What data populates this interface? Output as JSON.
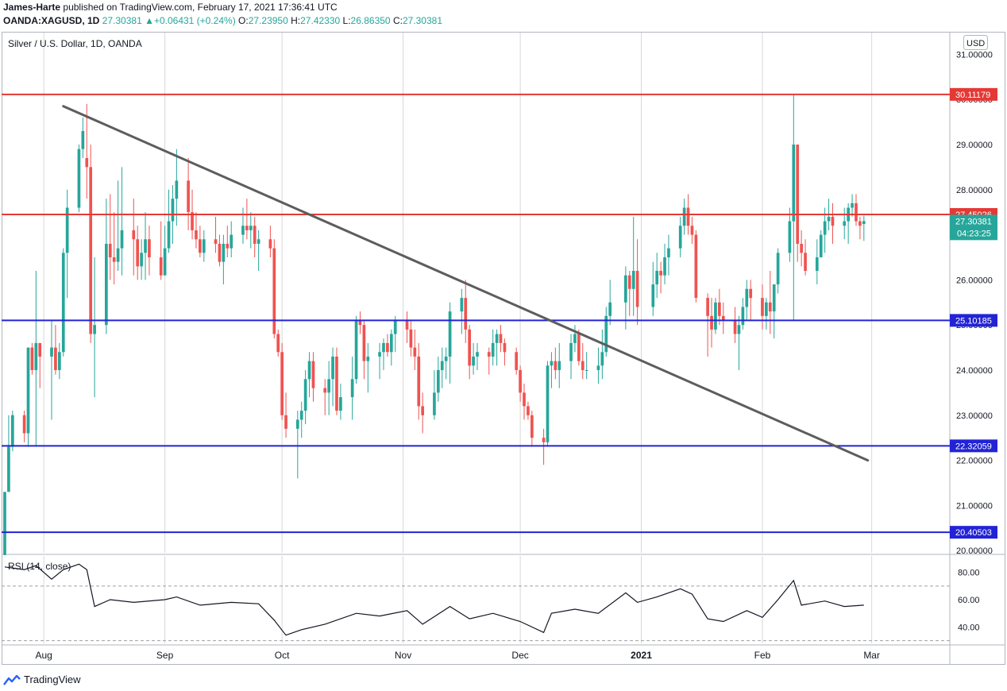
{
  "header": {
    "publisher_name": "James-Harte",
    "published_text": "published on TradingView.com, February 17, 2021 17:36:41 UTC",
    "symbol": "OANDA:XAGUSD, 1D",
    "change": "27.30381 ▲+0.06431 (+0.24%)",
    "o_label": "O:",
    "o_value": "27.23950",
    "h_label": "H:",
    "h_value": "27.42330",
    "l_label": "L:",
    "l_value": "26.86350",
    "c_label": "C:",
    "c_value": "27.30381"
  },
  "footer": {
    "brand": "TradingView",
    "logo_icon": "tradingview-logo-icon"
  },
  "colors": {
    "up": "#26a69a",
    "down": "#ef5350",
    "resistance": "#e53935",
    "support": "#2323d6",
    "trendline": "#5d5d5d",
    "rsi": "#131722"
  },
  "chart_data": {
    "type": "candlestick",
    "title": "Silver / U.S. Dollar, 1D, OANDA",
    "currency": "USD",
    "last_price": "27.30381",
    "countdown": "04:23:25",
    "y_ticks": [
      "31.00000",
      "30.00000",
      "29.00000",
      "28.00000",
      "27.00000",
      "26.00000",
      "25.00000",
      "24.00000",
      "23.00000",
      "22.00000",
      "21.00000",
      "20.00000"
    ],
    "ylim": [
      19.95,
      31.5
    ],
    "x_labels": [
      "Aug",
      "Sep",
      "Oct",
      "Nov",
      "Dec",
      "2021",
      "Feb",
      "Mar"
    ],
    "x_label_dates": [
      "2020-08-01",
      "2020-09-01",
      "2020-10-01",
      "2020-11-01",
      "2020-12-01",
      "2021-01-01",
      "2021-02-01",
      "2021-03-01"
    ],
    "xlim": [
      "2020-07-22",
      "2021-03-21"
    ],
    "hlines": [
      {
        "value": 30.11179,
        "label": "30.11179",
        "kind": "resistance"
      },
      {
        "value": 27.45026,
        "label": "27.45026",
        "kind": "resistance"
      },
      {
        "value": 25.10185,
        "label": "25.10185",
        "kind": "support"
      },
      {
        "value": 22.32059,
        "label": "22.32059",
        "kind": "support"
      },
      {
        "value": 20.40503,
        "label": "20.40503",
        "kind": "support"
      }
    ],
    "trendline": [
      {
        "date": "2020-08-06",
        "price": 29.85
      },
      {
        "date": "2021-02-28",
        "price": 22.0
      }
    ],
    "candles": [
      [
        "2020-07-22",
        19.9,
        21.3,
        19.9,
        21.3
      ],
      [
        "2020-07-23",
        21.3,
        23.0,
        21.3,
        22.3
      ],
      [
        "2020-07-24",
        22.3,
        23.1,
        22.2,
        23.0
      ],
      [
        "2020-07-27",
        23.0,
        23.1,
        22.4,
        22.6
      ],
      [
        "2020-07-28",
        22.6,
        24.5,
        22.3,
        24.5
      ],
      [
        "2020-07-29",
        24.5,
        24.6,
        23.9,
        24.0
      ],
      [
        "2020-07-30",
        24.0,
        26.2,
        22.3,
        24.6
      ],
      [
        "2020-07-31",
        24.6,
        24.6,
        23.6,
        24.3
      ],
      [
        "2020-08-03",
        24.3,
        25.1,
        22.9,
        24.5
      ],
      [
        "2020-08-04",
        24.5,
        25.0,
        23.9,
        24.0
      ],
      [
        "2020-08-05",
        24.0,
        24.6,
        23.8,
        24.4
      ],
      [
        "2020-08-06",
        24.4,
        26.7,
        24.3,
        26.6
      ],
      [
        "2020-08-07",
        26.6,
        28.0,
        25.6,
        27.6
      ],
      [
        "2020-08-10",
        27.6,
        29.0,
        27.5,
        28.9
      ],
      [
        "2020-08-11",
        28.9,
        29.6,
        28.7,
        29.3
      ],
      [
        "2020-08-12",
        28.7,
        29.9,
        27.8,
        28.5
      ],
      [
        "2020-08-13",
        28.5,
        29.0,
        24.6,
        24.8
      ],
      [
        "2020-08-14",
        24.8,
        26.5,
        23.4,
        25.0
      ],
      [
        "2020-08-17",
        25.0,
        27.8,
        24.8,
        26.8
      ],
      [
        "2020-08-18",
        26.8,
        27.9,
        26.0,
        26.5
      ],
      [
        "2020-08-19",
        26.5,
        27.5,
        25.9,
        26.4
      ],
      [
        "2020-08-20",
        26.4,
        28.2,
        26.2,
        26.7
      ],
      [
        "2020-08-21",
        26.7,
        28.5,
        26.1,
        27.1
      ],
      [
        "2020-08-24",
        27.1,
        27.8,
        26.1,
        26.9
      ],
      [
        "2020-08-25",
        26.9,
        27.2,
        26.0,
        26.3
      ],
      [
        "2020-08-26",
        26.3,
        26.9,
        26.0,
        26.6
      ],
      [
        "2020-08-27",
        26.6,
        27.5,
        26.0,
        26.9
      ],
      [
        "2020-08-28",
        26.9,
        27.2,
        26.1,
        26.5
      ],
      [
        "2020-08-31",
        26.5,
        27.3,
        26.0,
        26.1
      ],
      [
        "2020-09-01",
        26.1,
        27.2,
        26.1,
        26.7
      ],
      [
        "2020-09-02",
        26.7,
        28.0,
        26.6,
        27.3
      ],
      [
        "2020-09-03",
        27.3,
        28.1,
        26.8,
        27.8
      ],
      [
        "2020-09-04",
        27.8,
        28.9,
        27.2,
        28.2
      ],
      [
        "2020-09-07",
        28.2,
        28.7,
        27.1,
        27.5
      ],
      [
        "2020-09-08",
        27.5,
        28.0,
        26.9,
        27.1
      ],
      [
        "2020-09-09",
        27.1,
        27.5,
        26.7,
        26.9
      ],
      [
        "2020-09-10",
        26.9,
        27.2,
        26.5,
        26.6
      ],
      [
        "2020-09-11",
        26.6,
        27.1,
        26.4,
        26.9
      ],
      [
        "2020-09-14",
        26.9,
        27.4,
        26.6,
        26.8
      ],
      [
        "2020-09-15",
        26.8,
        27.0,
        26.3,
        26.4
      ],
      [
        "2020-09-16",
        26.4,
        27.0,
        25.9,
        26.8
      ],
      [
        "2020-09-17",
        26.8,
        27.2,
        26.5,
        26.7
      ],
      [
        "2020-09-18",
        26.7,
        27.3,
        26.5,
        27.0
      ],
      [
        "2020-09-21",
        27.0,
        27.6,
        26.8,
        27.2
      ],
      [
        "2020-09-22",
        27.2,
        27.8,
        26.9,
        27.1
      ],
      [
        "2020-09-23",
        27.1,
        27.5,
        26.7,
        27.2
      ],
      [
        "2020-09-24",
        27.2,
        27.4,
        26.5,
        26.8
      ],
      [
        "2020-09-25",
        26.8,
        27.1,
        26.2,
        26.9
      ],
      [
        "2020-09-28",
        26.9,
        27.2,
        26.5,
        26.7
      ],
      [
        "2020-09-29",
        26.7,
        26.9,
        24.7,
        24.8
      ],
      [
        "2020-09-30",
        24.8,
        24.9,
        24.3,
        24.4
      ],
      [
        "2020-10-01",
        24.4,
        24.6,
        22.9,
        23.0
      ],
      [
        "2020-10-02",
        23.0,
        23.5,
        22.5,
        22.7
      ],
      [
        "2020-10-05",
        22.7,
        23.1,
        21.6,
        22.9
      ],
      [
        "2020-10-06",
        22.9,
        23.3,
        22.5,
        23.1
      ],
      [
        "2020-10-07",
        23.1,
        24.0,
        22.8,
        23.8
      ],
      [
        "2020-10-08",
        23.8,
        24.4,
        23.4,
        24.2
      ],
      [
        "2020-10-09",
        24.2,
        24.4,
        23.3,
        23.6
      ],
      [
        "2020-10-12",
        23.6,
        23.8,
        23.0,
        23.5
      ],
      [
        "2020-10-13",
        23.5,
        24.2,
        23.0,
        23.8
      ],
      [
        "2020-10-14",
        23.8,
        24.5,
        23.2,
        24.3
      ],
      [
        "2020-10-15",
        24.3,
        24.5,
        23.0,
        23.1
      ],
      [
        "2020-10-16",
        23.1,
        23.7,
        22.9,
        23.4
      ],
      [
        "2020-10-19",
        23.4,
        24.3,
        22.9,
        23.8
      ],
      [
        "2020-10-20",
        23.8,
        25.2,
        23.7,
        25.1
      ],
      [
        "2020-10-21",
        25.1,
        25.3,
        24.8,
        25.0
      ],
      [
        "2020-10-22",
        25.0,
        25.1,
        23.8,
        24.2
      ],
      [
        "2020-10-23",
        24.2,
        24.6,
        23.5,
        24.3
      ],
      [
        "2020-10-26",
        24.3,
        24.6,
        23.8,
        24.4
      ],
      [
        "2020-10-27",
        24.4,
        24.7,
        24.0,
        24.6
      ],
      [
        "2020-10-28",
        24.6,
        24.8,
        24.3,
        24.4
      ],
      [
        "2020-10-29",
        24.4,
        24.9,
        24.1,
        24.8
      ],
      [
        "2020-10-30",
        24.8,
        25.2,
        24.4,
        25.1
      ],
      [
        "2020-11-02",
        25.1,
        25.3,
        24.6,
        24.9
      ],
      [
        "2020-11-03",
        24.9,
        25.1,
        24.3,
        24.5
      ],
      [
        "2020-11-04",
        24.5,
        24.9,
        24.0,
        24.3
      ],
      [
        "2020-11-05",
        24.3,
        24.6,
        22.9,
        23.2
      ],
      [
        "2020-11-06",
        23.2,
        23.5,
        22.6,
        23.0
      ],
      [
        "2020-11-09",
        23.0,
        24.0,
        22.9,
        23.5
      ],
      [
        "2020-11-10",
        23.5,
        24.3,
        23.3,
        24.0
      ],
      [
        "2020-11-11",
        24.0,
        24.5,
        23.6,
        24.2
      ],
      [
        "2020-11-12",
        24.2,
        24.5,
        23.8,
        24.3
      ],
      [
        "2020-11-13",
        24.3,
        25.5,
        23.7,
        25.3
      ],
      [
        "2020-11-16",
        25.3,
        25.8,
        24.8,
        25.6
      ],
      [
        "2020-11-17",
        25.6,
        26.0,
        24.6,
        24.9
      ],
      [
        "2020-11-18",
        24.9,
        25.0,
        23.8,
        24.1
      ],
      [
        "2020-11-19",
        24.1,
        24.6,
        23.9,
        24.3
      ],
      [
        "2020-11-20",
        24.3,
        24.6,
        24.0,
        24.4
      ],
      [
        "2020-11-23",
        24.4,
        24.5,
        23.9,
        24.3
      ],
      [
        "2020-11-24",
        24.3,
        24.9,
        24.1,
        24.6
      ],
      [
        "2020-11-25",
        24.6,
        24.9,
        24.1,
        24.8
      ],
      [
        "2020-11-26",
        24.8,
        25.0,
        24.4,
        24.6
      ],
      [
        "2020-11-27",
        24.6,
        24.7,
        24.1,
        24.4
      ],
      [
        "2020-11-30",
        24.4,
        24.5,
        23.9,
        24.0
      ],
      [
        "2020-12-01",
        24.0,
        24.1,
        23.3,
        23.5
      ],
      [
        "2020-12-02",
        23.5,
        23.7,
        22.9,
        23.2
      ],
      [
        "2020-12-03",
        23.2,
        23.3,
        22.9,
        23.0
      ],
      [
        "2020-12-04",
        23.0,
        23.1,
        22.3,
        22.5
      ],
      [
        "2020-12-07",
        22.5,
        22.7,
        21.9,
        22.4
      ],
      [
        "2020-12-08",
        22.4,
        24.2,
        22.3,
        24.1
      ],
      [
        "2020-12-09",
        24.1,
        24.4,
        23.6,
        24.2
      ],
      [
        "2020-12-10",
        24.2,
        24.5,
        23.8,
        24.0
      ],
      [
        "2020-12-11",
        24.0,
        24.6,
        23.6,
        24.2
      ],
      [
        "2020-12-14",
        24.2,
        24.8,
        23.8,
        24.6
      ],
      [
        "2020-12-15",
        24.6,
        25.0,
        24.4,
        24.8
      ],
      [
        "2020-12-16",
        24.8,
        24.9,
        24.1,
        24.2
      ],
      [
        "2020-12-17",
        24.2,
        24.6,
        23.8,
        24.0
      ],
      [
        "2020-12-18",
        24.0,
        24.4,
        23.8,
        24.0
      ],
      [
        "2020-12-21",
        24.0,
        24.5,
        23.7,
        24.1
      ],
      [
        "2020-12-22",
        24.1,
        24.9,
        23.8,
        24.4
      ],
      [
        "2020-12-23",
        24.4,
        25.4,
        24.3,
        25.2
      ],
      [
        "2020-12-24",
        25.2,
        26.0,
        25.0,
        25.5
      ],
      [
        "2020-12-28",
        25.5,
        26.3,
        24.9,
        26.1
      ],
      [
        "2020-12-29",
        26.1,
        26.2,
        25.2,
        25.8
      ],
      [
        "2020-12-30",
        25.8,
        27.4,
        25.2,
        26.2
      ],
      [
        "2020-12-31",
        26.2,
        26.9,
        25.0,
        25.4
      ],
      [
        "2021-01-04",
        25.4,
        26.4,
        25.2,
        25.9
      ],
      [
        "2021-01-05",
        25.9,
        26.6,
        25.6,
        26.2
      ],
      [
        "2021-01-06",
        26.2,
        26.4,
        25.7,
        26.1
      ],
      [
        "2021-01-07",
        26.1,
        26.8,
        25.9,
        26.5
      ],
      [
        "2021-01-08",
        26.5,
        27.0,
        26.1,
        26.7
      ],
      [
        "2021-01-11",
        26.7,
        27.4,
        26.5,
        27.2
      ],
      [
        "2021-01-12",
        27.2,
        27.8,
        27.0,
        27.6
      ],
      [
        "2021-01-13",
        27.6,
        27.9,
        27.0,
        27.2
      ],
      [
        "2021-01-14",
        27.2,
        27.4,
        26.8,
        27.0
      ],
      [
        "2021-01-15",
        27.0,
        27.1,
        25.5,
        25.6
      ],
      [
        "2021-01-18",
        25.6,
        25.7,
        24.3,
        25.2
      ],
      [
        "2021-01-19",
        25.2,
        25.6,
        24.5,
        24.9
      ],
      [
        "2021-01-20",
        24.9,
        25.6,
        24.8,
        25.5
      ],
      [
        "2021-01-21",
        25.5,
        25.8,
        25.0,
        25.2
      ],
      [
        "2021-01-22",
        25.2,
        25.5,
        24.8,
        25.1
      ],
      [
        "2021-01-25",
        25.1,
        25.4,
        24.6,
        24.8
      ],
      [
        "2021-01-26",
        24.8,
        25.2,
        24.0,
        25.0
      ],
      [
        "2021-01-27",
        25.0,
        25.6,
        24.9,
        25.4
      ],
      [
        "2021-01-28",
        25.4,
        26.0,
        25.1,
        25.8
      ],
      [
        "2021-01-29",
        25.8,
        26.0,
        25.1,
        25.6
      ],
      [
        "2021-02-01",
        25.6,
        25.9,
        24.9,
        25.2
      ],
      [
        "2021-02-02",
        25.2,
        25.6,
        24.9,
        25.5
      ],
      [
        "2021-02-03",
        25.5,
        26.2,
        24.8,
        25.3
      ],
      [
        "2021-02-04",
        25.3,
        25.9,
        24.7,
        25.9
      ],
      [
        "2021-02-05",
        25.9,
        26.7,
        25.7,
        26.6
      ],
      [
        "2021-02-08",
        26.6,
        27.6,
        26.4,
        27.3
      ],
      [
        "2021-02-09",
        27.3,
        30.1,
        25.1,
        29.0
      ],
      [
        "2021-02-10",
        29.0,
        29.0,
        26.4,
        26.8
      ],
      [
        "2021-02-11",
        26.8,
        27.1,
        26.3,
        26.6
      ],
      [
        "2021-02-12",
        26.6,
        26.9,
        26.1,
        26.2
      ],
      [
        "2021-02-15",
        26.2,
        26.9,
        25.9,
        26.5
      ],
      [
        "2021-02-16",
        26.5,
        27.1,
        26.5,
        27.0
      ],
      [
        "2021-02-17",
        27.0,
        27.6,
        26.6,
        27.3
      ],
      [
        "2021-02-18",
        27.3,
        27.8,
        27.1,
        27.4
      ],
      [
        "2021-02-19",
        27.4,
        27.7,
        26.8,
        27.2
      ],
      [
        "2021-02-22",
        27.2,
        27.6,
        26.9,
        27.3
      ],
      [
        "2021-02-23",
        27.3,
        27.7,
        26.8,
        27.6
      ],
      [
        "2021-02-24",
        27.6,
        27.9,
        27.4,
        27.7
      ],
      [
        "2021-02-25",
        27.7,
        27.9,
        27.2,
        27.3
      ],
      [
        "2021-02-26",
        27.3,
        27.4,
        26.9,
        27.2
      ],
      [
        "2021-02-27",
        27.2395,
        27.4233,
        26.8635,
        27.30381
      ]
    ],
    "rsi": {
      "label": "RSI (14, close)",
      "y_ticks": [
        "80.00",
        "60.00",
        "40.00"
      ],
      "ylim": [
        28,
        92
      ],
      "bands": [
        70,
        30
      ],
      "points": [
        [
          "2020-07-22",
          84
        ],
        [
          "2020-07-27",
          82
        ],
        [
          "2020-07-30",
          85
        ],
        [
          "2020-08-03",
          75
        ],
        [
          "2020-08-06",
          82
        ],
        [
          "2020-08-10",
          86
        ],
        [
          "2020-08-12",
          82
        ],
        [
          "2020-08-14",
          55
        ],
        [
          "2020-08-18",
          60
        ],
        [
          "2020-08-24",
          58
        ],
        [
          "2020-09-01",
          60
        ],
        [
          "2020-09-04",
          62
        ],
        [
          "2020-09-10",
          56
        ],
        [
          "2020-09-18",
          58
        ],
        [
          "2020-09-25",
          57
        ],
        [
          "2020-09-29",
          45
        ],
        [
          "2020-10-02",
          34
        ],
        [
          "2020-10-06",
          38
        ],
        [
          "2020-10-12",
          42
        ],
        [
          "2020-10-20",
          50
        ],
        [
          "2020-10-26",
          48
        ],
        [
          "2020-11-02",
          52
        ],
        [
          "2020-11-06",
          42
        ],
        [
          "2020-11-13",
          55
        ],
        [
          "2020-11-18",
          46
        ],
        [
          "2020-11-24",
          50
        ],
        [
          "2020-12-01",
          44
        ],
        [
          "2020-12-07",
          36
        ],
        [
          "2020-12-09",
          50
        ],
        [
          "2020-12-15",
          53
        ],
        [
          "2020-12-21",
          50
        ],
        [
          "2020-12-28",
          65
        ],
        [
          "2020-12-31",
          58
        ],
        [
          "2021-01-05",
          62
        ],
        [
          "2021-01-11",
          68
        ],
        [
          "2021-01-14",
          64
        ],
        [
          "2021-01-18",
          46
        ],
        [
          "2021-01-22",
          44
        ],
        [
          "2021-01-28",
          52
        ],
        [
          "2021-02-01",
          47
        ],
        [
          "2021-02-05",
          60
        ],
        [
          "2021-02-09",
          74
        ],
        [
          "2021-02-11",
          56
        ],
        [
          "2021-02-17",
          59
        ],
        [
          "2021-02-22",
          55
        ],
        [
          "2021-02-27",
          56
        ]
      ]
    }
  }
}
